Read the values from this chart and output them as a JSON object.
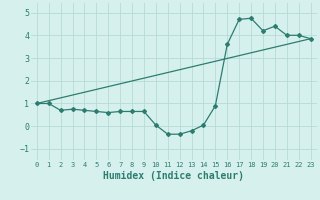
{
  "line1_x": [
    0,
    1,
    2,
    3,
    4,
    5,
    6,
    7,
    8,
    9,
    10,
    11,
    12,
    13,
    14,
    15,
    16,
    17,
    18,
    19,
    20,
    21,
    22,
    23
  ],
  "line1_y": [
    1.0,
    1.0,
    0.7,
    0.75,
    0.7,
    0.65,
    0.6,
    0.65,
    0.65,
    0.65,
    0.05,
    -0.35,
    -0.35,
    -0.2,
    0.05,
    0.9,
    3.6,
    4.7,
    4.75,
    4.2,
    4.4,
    4.0,
    4.0,
    3.85
  ],
  "line2_x": [
    0,
    23
  ],
  "line2_y": [
    1.0,
    3.85
  ],
  "color": "#2d7d6f",
  "bg_color": "#d6f0ee",
  "grid_color": "#b8dbd8",
  "xlabel": "Humidex (Indice chaleur)",
  "xlim": [
    -0.5,
    23.5
  ],
  "ylim": [
    -1.5,
    5.4
  ],
  "yticks": [
    -1,
    0,
    1,
    2,
    3,
    4,
    5
  ],
  "xticks": [
    0,
    1,
    2,
    3,
    4,
    5,
    6,
    7,
    8,
    9,
    10,
    11,
    12,
    13,
    14,
    15,
    16,
    17,
    18,
    19,
    20,
    21,
    22,
    23
  ],
  "label_fontsize": 7
}
